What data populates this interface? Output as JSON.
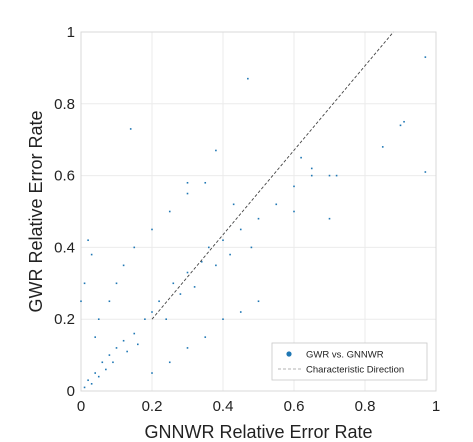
{
  "chart_data": {
    "type": "scatter",
    "title": "",
    "xlabel": "GNNWR Relative Error Rate",
    "ylabel": "GWR Relative Error Rate",
    "xlim": [
      0,
      1
    ],
    "ylim": [
      0,
      1
    ],
    "xticks": [
      "0",
      "0.2",
      "0.4",
      "0.6",
      "0.8",
      "1"
    ],
    "yticks": [
      "0",
      "0.2",
      "0.4",
      "0.6",
      "0.8",
      "1"
    ],
    "grid": true,
    "legend_position": "bottom-right",
    "series": [
      {
        "name": "GWR vs. GNNWR",
        "kind": "scatter",
        "color": "#1f77b4",
        "points": [
          [
            0.01,
            0.01
          ],
          [
            0.02,
            0.03
          ],
          [
            0.03,
            0.02
          ],
          [
            0.04,
            0.05
          ],
          [
            0.05,
            0.04
          ],
          [
            0.06,
            0.08
          ],
          [
            0.07,
            0.06
          ],
          [
            0.08,
            0.1
          ],
          [
            0.09,
            0.08
          ],
          [
            0.1,
            0.12
          ],
          [
            0.12,
            0.14
          ],
          [
            0.13,
            0.11
          ],
          [
            0.15,
            0.16
          ],
          [
            0.16,
            0.13
          ],
          [
            0.18,
            0.2
          ],
          [
            0.2,
            0.22
          ],
          [
            0.22,
            0.25
          ],
          [
            0.24,
            0.2
          ],
          [
            0.26,
            0.3
          ],
          [
            0.28,
            0.27
          ],
          [
            0.3,
            0.33
          ],
          [
            0.32,
            0.29
          ],
          [
            0.34,
            0.36
          ],
          [
            0.36,
            0.4
          ],
          [
            0.38,
            0.35
          ],
          [
            0.4,
            0.42
          ],
          [
            0.42,
            0.38
          ],
          [
            0.45,
            0.45
          ],
          [
            0.48,
            0.4
          ],
          [
            0.5,
            0.48
          ],
          [
            0.55,
            0.52
          ],
          [
            0.6,
            0.5
          ],
          [
            0.65,
            0.62
          ],
          [
            0.7,
            0.6
          ],
          [
            0.05,
            0.2
          ],
          [
            0.08,
            0.25
          ],
          [
            0.1,
            0.3
          ],
          [
            0.12,
            0.35
          ],
          [
            0.15,
            0.4
          ],
          [
            0.2,
            0.45
          ],
          [
            0.25,
            0.5
          ],
          [
            0.3,
            0.55
          ],
          [
            0.35,
            0.58
          ],
          [
            0.2,
            0.05
          ],
          [
            0.25,
            0.08
          ],
          [
            0.3,
            0.12
          ],
          [
            0.35,
            0.15
          ],
          [
            0.4,
            0.2
          ],
          [
            0.45,
            0.22
          ],
          [
            0.5,
            0.25
          ],
          [
            0.14,
            0.73
          ],
          [
            0.47,
            0.87
          ],
          [
            0.6,
            0.57
          ],
          [
            0.65,
            0.6
          ],
          [
            0.7,
            0.48
          ],
          [
            0.85,
            0.68
          ],
          [
            0.9,
            0.74
          ],
          [
            0.91,
            0.75
          ],
          [
            0.97,
            0.93
          ],
          [
            0.97,
            0.61
          ],
          [
            0.72,
            0.6
          ],
          [
            0.62,
            0.65
          ],
          [
            0.38,
            0.67
          ],
          [
            0.43,
            0.52
          ],
          [
            0.3,
            0.58
          ],
          [
            0.02,
            0.42
          ],
          [
            0.03,
            0.38
          ],
          [
            0.01,
            0.3
          ],
          [
            0.0,
            0.25
          ],
          [
            0.04,
            0.15
          ]
        ]
      },
      {
        "name": "Characteristic Direction",
        "kind": "line",
        "color": "#444444",
        "x": [
          0.2,
          0.88
        ],
        "y": [
          0.2,
          1.0
        ]
      }
    ]
  }
}
